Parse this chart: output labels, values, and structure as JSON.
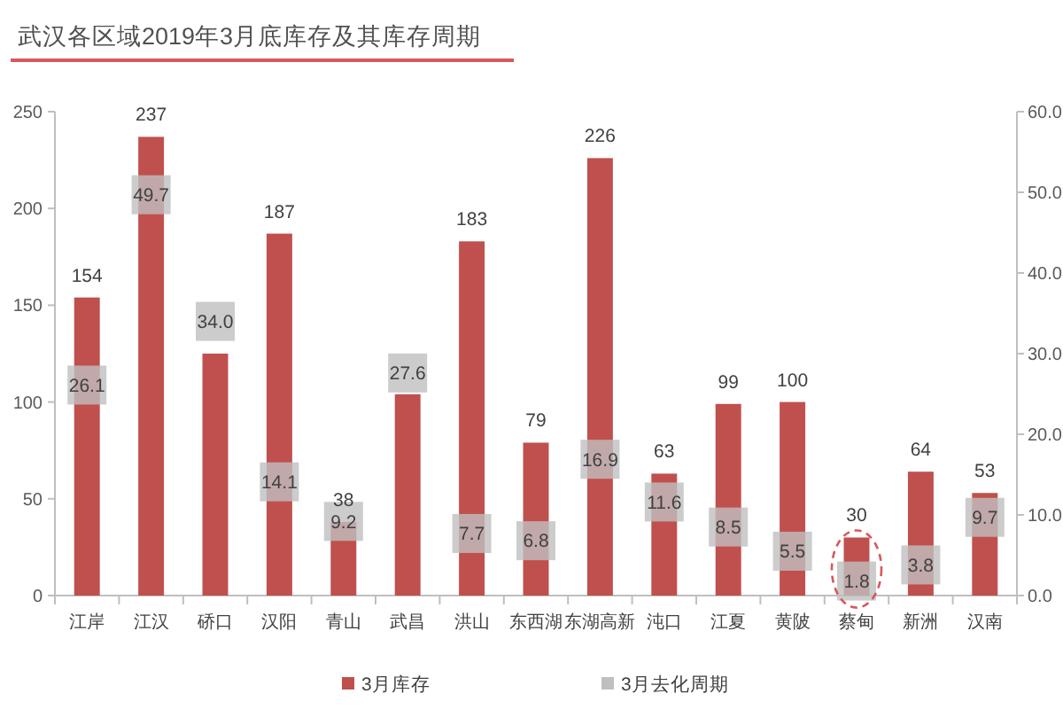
{
  "chart_data": {
    "type": "bar",
    "title": "武汉各区域2019年3月底库存及其库存周期",
    "categories": [
      "江岸",
      "江汉",
      "硚口",
      "汉阳",
      "青山",
      "武昌",
      "洪山",
      "东西湖",
      "东湖高新",
      "沌口",
      "江夏",
      "黄陂",
      "蔡甸",
      "新洲",
      "汉南"
    ],
    "series": [
      {
        "name": "3月库存",
        "color": "#c0504d",
        "values": [
          154,
          237,
          125,
          187,
          38,
          104,
          183,
          79,
          226,
          63,
          99,
          100,
          30,
          64,
          53
        ],
        "value_labels": [
          "154",
          "237",
          null,
          "187",
          "38",
          null,
          "183",
          "79",
          "226",
          "63",
          "99",
          "100",
          "30",
          "64",
          "53"
        ]
      },
      {
        "name": "3月去化周期",
        "type": "scatter",
        "axis": "y2",
        "marker": "square",
        "color": "#bfbfbf",
        "values": [
          26.1,
          49.7,
          34.0,
          14.1,
          9.2,
          27.6,
          7.7,
          6.8,
          16.9,
          11.6,
          8.5,
          5.5,
          1.8,
          3.8,
          9.7
        ],
        "value_labels": [
          "26.1",
          "49.7",
          "34.0",
          "14.1",
          "9.2",
          "27.6",
          "7.7",
          "6.8",
          "16.9",
          "11.6",
          "8.5",
          "5.5",
          "1.8",
          "3.8",
          "9.7"
        ]
      }
    ],
    "ylim": [
      0,
      250
    ],
    "yticks": [
      0,
      50,
      100,
      150,
      200,
      250
    ],
    "y2lim": [
      0,
      60
    ],
    "y2ticks": [
      {
        "value": 0,
        "label": "0.0"
      },
      {
        "value": 10,
        "label": "10.0"
      },
      {
        "value": 20,
        "label": "20.0"
      },
      {
        "value": 30,
        "label": "30.0"
      },
      {
        "value": 40,
        "label": "40.0"
      },
      {
        "value": 50,
        "label": "50.0"
      },
      {
        "value": 60,
        "label": "60.0"
      }
    ],
    "legend": "bottom"
  }
}
